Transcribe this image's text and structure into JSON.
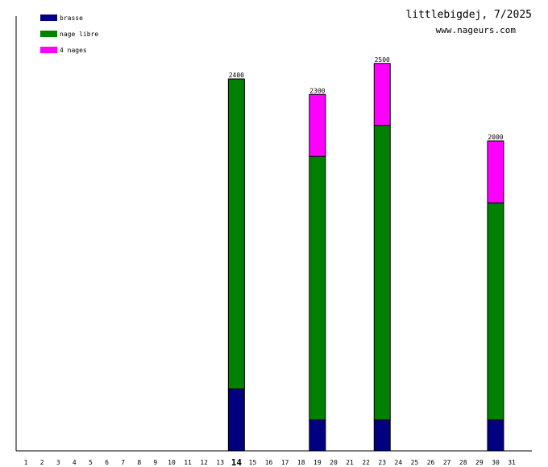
{
  "header": {
    "title": "littlebigdej, 7/2025",
    "subtitle": "www.nageurs.com"
  },
  "chart_data": {
    "type": "bar",
    "stacked": true,
    "categories": [
      "1",
      "2",
      "3",
      "4",
      "5",
      "6",
      "7",
      "8",
      "9",
      "10",
      "11",
      "12",
      "13",
      "14",
      "15",
      "16",
      "17",
      "18",
      "19",
      "20",
      "21",
      "22",
      "23",
      "24",
      "25",
      "26",
      "27",
      "28",
      "29",
      "30",
      "31"
    ],
    "highlight_category": "14",
    "ylim": [
      0,
      2400
    ],
    "grid": false,
    "legend_position": "top-left",
    "series": [
      {
        "name": "brasse",
        "color": "#000080",
        "values": [
          0,
          0,
          0,
          0,
          0,
          0,
          0,
          0,
          0,
          0,
          0,
          0,
          0,
          400,
          0,
          0,
          0,
          0,
          200,
          0,
          0,
          0,
          200,
          0,
          0,
          0,
          0,
          0,
          0,
          200,
          0
        ]
      },
      {
        "name": "nage libre",
        "color": "#008000",
        "values": [
          0,
          0,
          0,
          0,
          0,
          0,
          0,
          0,
          0,
          0,
          0,
          0,
          0,
          2000,
          0,
          0,
          0,
          0,
          1700,
          0,
          0,
          0,
          1900,
          0,
          0,
          0,
          0,
          0,
          0,
          1400,
          0
        ]
      },
      {
        "name": "4 nages",
        "color": "#ff00ff",
        "values": [
          0,
          0,
          0,
          0,
          0,
          0,
          0,
          0,
          0,
          0,
          0,
          0,
          0,
          0,
          0,
          0,
          0,
          0,
          400,
          0,
          0,
          0,
          400,
          0,
          0,
          0,
          0,
          0,
          0,
          400,
          0
        ]
      }
    ],
    "totals": [
      {
        "category": "14",
        "label": "2400"
      },
      {
        "category": "19",
        "label": "2300"
      },
      {
        "category": "23",
        "label": "2500"
      },
      {
        "category": "30",
        "label": "2000"
      }
    ]
  }
}
